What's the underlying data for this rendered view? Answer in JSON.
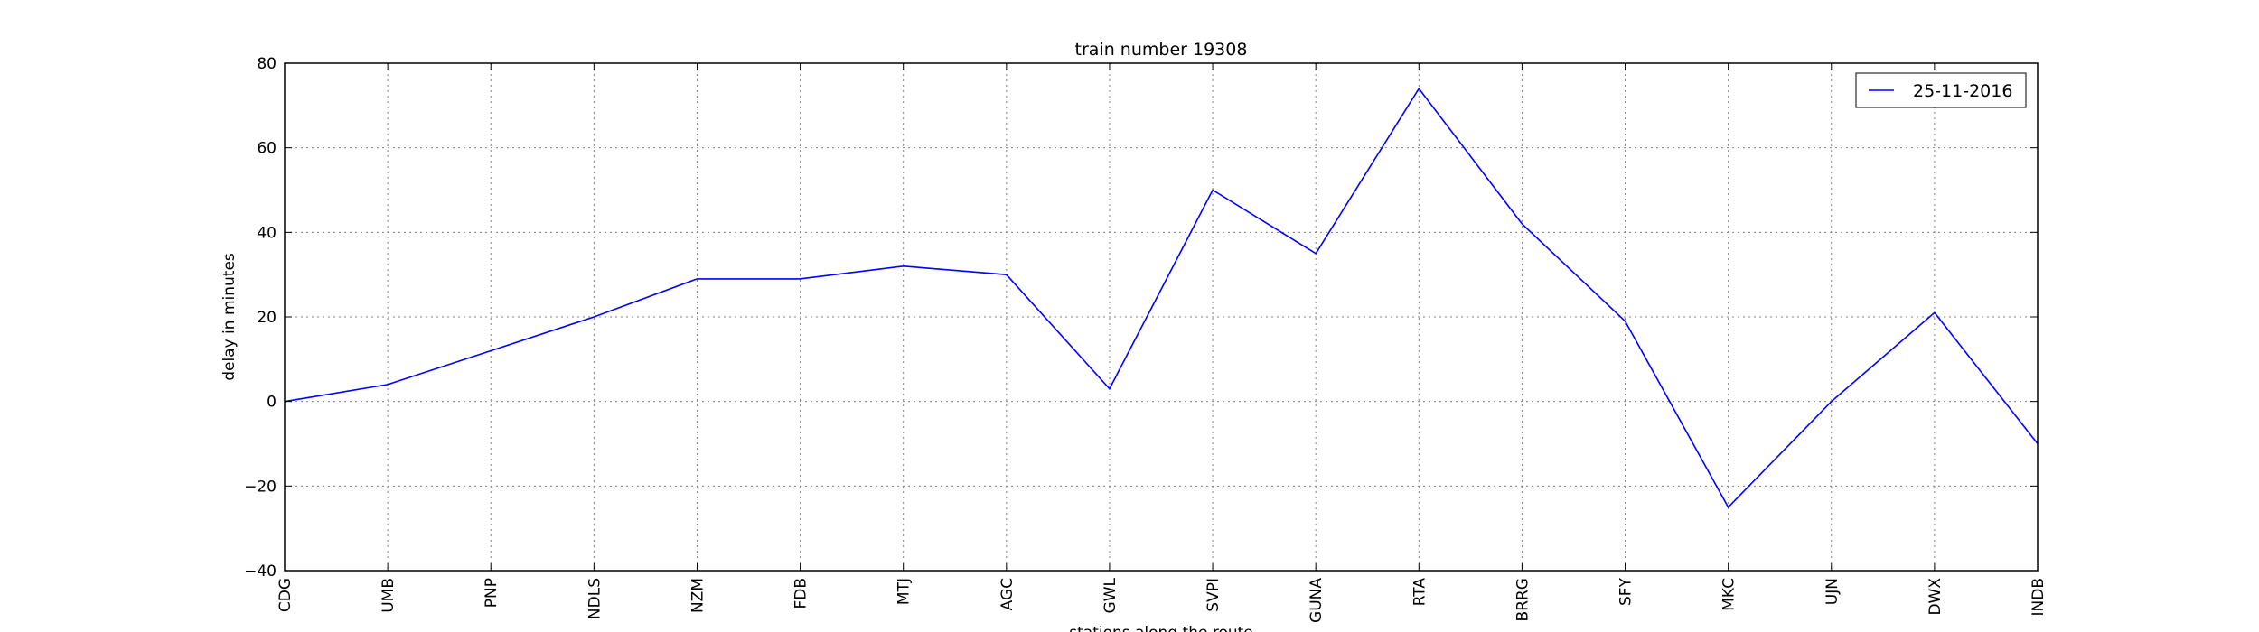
{
  "chart_data": {
    "type": "line",
    "title": "train number 19308",
    "xlabel": "stations along the route",
    "ylabel": "delay in minutes",
    "categories": [
      "CDG",
      "UMB",
      "PNP",
      "NDLS",
      "NZM",
      "FDB",
      "MTJ",
      "AGC",
      "GWL",
      "SVPI",
      "GUNA",
      "RTA",
      "BRRG",
      "SFY",
      "MKC",
      "UJN",
      "DWX",
      "INDB"
    ],
    "series": [
      {
        "name": "25-11-2016",
        "color": "#0000ff",
        "values": [
          0,
          4,
          12,
          20,
          29,
          29,
          32,
          30,
          3,
          50,
          35,
          74,
          42,
          19,
          -25,
          0,
          21,
          -10
        ]
      }
    ],
    "ylim": [
      -40,
      80
    ],
    "yticks": [
      -40,
      -20,
      0,
      20,
      40,
      60,
      80
    ],
    "grid": true,
    "legend_position": "top-right"
  }
}
